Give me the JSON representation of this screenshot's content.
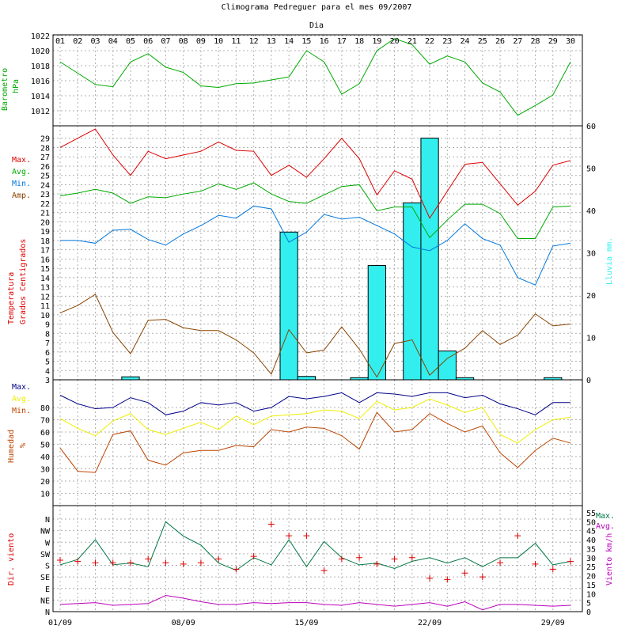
{
  "title": "Climograma Pedreguer para el mes 09/2007",
  "top_axis_label": "Dia",
  "day_labels": [
    "01",
    "02",
    "03",
    "04",
    "05",
    "06",
    "07",
    "08",
    "09",
    "10",
    "11",
    "12",
    "13",
    "14",
    "15",
    "16",
    "17",
    "18",
    "19",
    "20",
    "21",
    "22",
    "23",
    "24",
    "25",
    "26",
    "27",
    "28",
    "29",
    "30"
  ],
  "date_labels": [
    "01/09",
    "08/09",
    "15/09",
    "22/09",
    "29/09"
  ],
  "colors": {
    "pressure": "#00aa00",
    "tmax": "#dd0000",
    "tavg": "#00aa00",
    "tmin": "#0077dd",
    "tamp": "#884400",
    "rain": "#33eeee",
    "hmax": "#000088",
    "havg": "#eeee00",
    "hmin": "#bb4400",
    "wdir": "#dd0000",
    "wmax": "#007744",
    "wavg": "#bb00bb"
  },
  "chart_data": [
    {
      "type": "line",
      "ylabel": "Barometro hPa",
      "ylim": [
        1010,
        1022
      ],
      "y_ticks": [
        "1012",
        "1014",
        "1016",
        "1018",
        "1020",
        "1022"
      ],
      "series": [
        {
          "name": "",
          "values": [
            1018.5,
            1017,
            1015.5,
            1015.2,
            1018.5,
            1019.6,
            1017.8,
            1017.1,
            1015.3,
            1015.1,
            1015.6,
            1015.7,
            1016.1,
            1016.5,
            1020,
            1018.5,
            1014.2,
            1015.6,
            1020,
            1021.6,
            1020.8,
            1018.2,
            1019.3,
            1018.5,
            1015.7,
            1014.5,
            1011.4,
            1012.7,
            1014.1,
            1018.5
          ]
        }
      ]
    },
    {
      "type": "line+bar",
      "ylabel": "Temperatura Grados Centigrados",
      "y2label": "Lluvia mm.",
      "ylim": [
        3,
        30
      ],
      "y_ticks": [
        "3",
        "4",
        "5",
        "6",
        "7",
        "8",
        "9",
        "10",
        "11",
        "12",
        "13",
        "14",
        "15",
        "16",
        "17",
        "18",
        "19",
        "20",
        "21",
        "22",
        "23",
        "24",
        "25",
        "26",
        "27",
        "28",
        "29"
      ],
      "y2lim": [
        0,
        60
      ],
      "y2_ticks": [
        "0",
        "10",
        "20",
        "30",
        "40",
        "50",
        "60"
      ],
      "legend": [
        "Max.",
        "Avg.",
        "Min.",
        "Amp."
      ],
      "series": [
        {
          "name": "Max.",
          "values": [
            28,
            29,
            30,
            27.2,
            25,
            27.6,
            26.8,
            27.2,
            27.6,
            28.6,
            27.7,
            27.6,
            25,
            26.1,
            24.8,
            26.8,
            29,
            26.8,
            22.9,
            25.5,
            24.6,
            20.4,
            23.3,
            26.2,
            26.4,
            24.1,
            21.8,
            23.3,
            26.1,
            26.6
          ]
        },
        {
          "name": "Avg.",
          "values": [
            22.8,
            23.1,
            23.5,
            23.1,
            22,
            22.7,
            22.6,
            23,
            23.3,
            24.1,
            23.5,
            24.2,
            23,
            22.2,
            22,
            22.9,
            23.8,
            24,
            21.2,
            21.6,
            21.6,
            18.3,
            20.2,
            21.9,
            21.9,
            20.9,
            18.2,
            18.2,
            21.6,
            21.7
          ]
        },
        {
          "name": "Min.",
          "values": [
            18,
            18,
            17.7,
            19.1,
            19.2,
            18.1,
            17.5,
            18.7,
            19.6,
            20.7,
            20.4,
            21.7,
            21.4,
            17.8,
            18.9,
            20.8,
            20.3,
            20.5,
            19.6,
            18.7,
            17.3,
            16.9,
            18,
            19.8,
            18.2,
            17.5,
            14,
            13.2,
            17.4,
            17.7
          ]
        },
        {
          "name": "Amp.",
          "values": [
            10.2,
            11,
            12.2,
            8.1,
            5.8,
            9.4,
            9.5,
            8.6,
            8.3,
            8.3,
            7.3,
            5.9,
            3.6,
            8.4,
            5.9,
            6.2,
            8.7,
            6.3,
            3.3,
            6.9,
            7.3,
            3.5,
            5.3,
            6.4,
            8.3,
            6.8,
            7.8,
            10.1,
            8.8,
            9
          ]
        },
        {
          "name": "Lluvia",
          "type": "bar",
          "values": [
            0,
            0,
            0,
            0,
            0.7,
            0,
            0,
            0,
            0,
            0,
            0,
            0,
            0,
            34.9,
            0.8,
            0,
            0,
            0.5,
            27,
            0,
            41.8,
            57.1,
            6.8,
            0.5,
            0,
            0,
            0,
            0,
            0.5,
            0
          ]
        }
      ]
    },
    {
      "type": "line",
      "ylabel": "Humedad %",
      "ylim": [
        0,
        100
      ],
      "y_ticks": [
        "10",
        "20",
        "30",
        "40",
        "50",
        "60",
        "70",
        "80"
      ],
      "legend": [
        "Max.",
        "Avg.",
        "Min."
      ],
      "series": [
        {
          "name": "Max.",
          "values": [
            90,
            83,
            79,
            80,
            88,
            84,
            74,
            77,
            84,
            82,
            84,
            77,
            80,
            89,
            87,
            89,
            92,
            84,
            92,
            91,
            89,
            92,
            92,
            88,
            90,
            83,
            79,
            74,
            84,
            84
          ]
        },
        {
          "name": "Avg.",
          "values": [
            71,
            63,
            57,
            69,
            75,
            62,
            58,
            63,
            68,
            62,
            73,
            66,
            73,
            74,
            75,
            78,
            77,
            71,
            85,
            78,
            80,
            87,
            82,
            76,
            80,
            58,
            51,
            62,
            70,
            72
          ]
        },
        {
          "name": "Min.",
          "values": [
            47,
            28,
            27,
            58,
            61,
            37,
            33,
            43,
            45,
            45,
            49,
            48,
            62,
            60,
            64,
            63,
            57,
            46,
            76,
            60,
            62,
            75,
            67,
            60,
            65,
            43,
            31,
            45,
            55,
            51
          ]
        }
      ]
    },
    {
      "type": "scatter+line",
      "ylabel": "Dir. viento",
      "y2label": "Viento km/h",
      "y_ticks": [
        "N",
        "NE",
        "E",
        "SE",
        "S",
        "SW",
        "W",
        "NW",
        "N"
      ],
      "y2lim": [
        0,
        55
      ],
      "y2_ticks": [
        "0",
        "5",
        "10",
        "15",
        "20",
        "25",
        "30",
        "35",
        "40",
        "45",
        "50",
        "55"
      ],
      "legend": [
        "Max.",
        "Avg."
      ],
      "direction_degrees": [
        200,
        195,
        190,
        190,
        190,
        205,
        190,
        185,
        190,
        205,
        165,
        215,
        340,
        295,
        295,
        160,
        205,
        210,
        185,
        205,
        210,
        130,
        125,
        150,
        135,
        190,
        295,
        185,
        165,
        195
      ],
      "series": [
        {
          "name": "Max.",
          "values": [
            26,
            29,
            40,
            26,
            27,
            25,
            50,
            42,
            37,
            27,
            23,
            30,
            26,
            40,
            25,
            39,
            30,
            26,
            27,
            24,
            28,
            30,
            27,
            30,
            25,
            30,
            30,
            38,
            26,
            28
          ]
        },
        {
          "name": "Avg.",
          "values": [
            4,
            4.5,
            5,
            3.5,
            4,
            4.5,
            9,
            7.5,
            5.5,
            4,
            4,
            5,
            4.5,
            5,
            5,
            4,
            3.5,
            5,
            4,
            3,
            4,
            5,
            3,
            5.5,
            1,
            4,
            4,
            3.5,
            3,
            3.5
          ]
        }
      ]
    }
  ]
}
